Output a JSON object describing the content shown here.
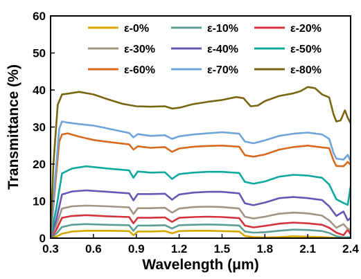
{
  "chart_data": {
    "type": "line",
    "title": "",
    "xlabel": "Wavelength (μm)",
    "ylabel": "Transmittance (%)",
    "xlim": [
      0.3,
      2.4
    ],
    "ylim": [
      0,
      60
    ],
    "xticks": [
      "0.3",
      "0.6",
      "0.9",
      "1.2",
      "1.5",
      "1.8",
      "2.1",
      "2.4"
    ],
    "yticks": [
      "0",
      "10",
      "20",
      "30",
      "40",
      "50",
      "60"
    ],
    "grid": false,
    "legend_position": "top-center",
    "series": [
      {
        "name": "ε-0%",
        "color": "#d4a800",
        "points": [
          [
            0.3,
            0.0
          ],
          [
            0.34,
            0.4
          ],
          [
            0.38,
            1.2
          ],
          [
            0.45,
            1.8
          ],
          [
            0.55,
            2.0
          ],
          [
            0.7,
            2.0
          ],
          [
            0.85,
            1.9
          ],
          [
            0.88,
            0.8
          ],
          [
            0.91,
            1.8
          ],
          [
            1.0,
            1.8
          ],
          [
            1.1,
            1.9
          ],
          [
            1.15,
            1.3
          ],
          [
            1.2,
            1.9
          ],
          [
            1.3,
            2.0
          ],
          [
            1.4,
            2.0
          ],
          [
            1.5,
            1.9
          ],
          [
            1.62,
            1.8
          ],
          [
            1.66,
            0.6
          ],
          [
            1.72,
            0.3
          ],
          [
            1.8,
            0.2
          ],
          [
            1.9,
            0.3
          ],
          [
            2.0,
            0.5
          ],
          [
            2.1,
            0.4
          ],
          [
            2.2,
            0.3
          ],
          [
            2.3,
            0.1
          ],
          [
            2.4,
            0.0
          ]
        ]
      },
      {
        "name": "ε-10%",
        "color": "#5a9e96",
        "points": [
          [
            0.3,
            0.0
          ],
          [
            0.34,
            1.2
          ],
          [
            0.38,
            3.0
          ],
          [
            0.45,
            3.6
          ],
          [
            0.55,
            3.8
          ],
          [
            0.7,
            3.6
          ],
          [
            0.85,
            3.5
          ],
          [
            0.88,
            2.0
          ],
          [
            0.91,
            3.4
          ],
          [
            1.0,
            3.4
          ],
          [
            1.1,
            3.5
          ],
          [
            1.15,
            2.6
          ],
          [
            1.2,
            3.5
          ],
          [
            1.3,
            3.6
          ],
          [
            1.4,
            3.7
          ],
          [
            1.5,
            3.6
          ],
          [
            1.62,
            3.4
          ],
          [
            1.66,
            1.8
          ],
          [
            1.72,
            1.5
          ],
          [
            1.8,
            1.6
          ],
          [
            1.9,
            2.0
          ],
          [
            2.0,
            2.3
          ],
          [
            2.1,
            2.2
          ],
          [
            2.2,
            1.9
          ],
          [
            2.25,
            1.4
          ],
          [
            2.3,
            0.5
          ],
          [
            2.35,
            0.2
          ],
          [
            2.4,
            0.3
          ]
        ]
      },
      {
        "name": "ε-20%",
        "color": "#d4333a",
        "points": [
          [
            0.3,
            0.0
          ],
          [
            0.34,
            2.2
          ],
          [
            0.38,
            5.5
          ],
          [
            0.45,
            6.0
          ],
          [
            0.55,
            6.2
          ],
          [
            0.7,
            5.9
          ],
          [
            0.85,
            5.7
          ],
          [
            0.88,
            4.0
          ],
          [
            0.91,
            5.5
          ],
          [
            1.0,
            5.5
          ],
          [
            1.1,
            5.6
          ],
          [
            1.15,
            4.4
          ],
          [
            1.2,
            5.5
          ],
          [
            1.3,
            5.7
          ],
          [
            1.4,
            5.8
          ],
          [
            1.5,
            5.7
          ],
          [
            1.62,
            5.4
          ],
          [
            1.66,
            3.4
          ],
          [
            1.72,
            2.9
          ],
          [
            1.8,
            3.3
          ],
          [
            1.9,
            3.9
          ],
          [
            2.0,
            4.2
          ],
          [
            2.1,
            4.0
          ],
          [
            2.2,
            3.6
          ],
          [
            2.25,
            2.8
          ],
          [
            2.3,
            1.5
          ],
          [
            2.35,
            0.8
          ],
          [
            2.38,
            2.3
          ],
          [
            2.4,
            1.0
          ]
        ]
      },
      {
        "name": "ε-30%",
        "color": "#a39483",
        "points": [
          [
            0.3,
            0.0
          ],
          [
            0.34,
            3.5
          ],
          [
            0.38,
            8.0
          ],
          [
            0.45,
            8.6
          ],
          [
            0.55,
            8.8
          ],
          [
            0.7,
            8.6
          ],
          [
            0.85,
            8.3
          ],
          [
            0.88,
            6.5
          ],
          [
            0.91,
            8.1
          ],
          [
            1.0,
            8.1
          ],
          [
            1.1,
            8.2
          ],
          [
            1.15,
            6.9
          ],
          [
            1.2,
            8.0
          ],
          [
            1.3,
            8.4
          ],
          [
            1.4,
            8.5
          ],
          [
            1.5,
            8.4
          ],
          [
            1.62,
            8.0
          ],
          [
            1.66,
            5.8
          ],
          [
            1.72,
            5.3
          ],
          [
            1.8,
            5.8
          ],
          [
            1.9,
            6.6
          ],
          [
            2.0,
            6.9
          ],
          [
            2.1,
            6.7
          ],
          [
            2.2,
            6.1
          ],
          [
            2.25,
            4.8
          ],
          [
            2.3,
            2.8
          ],
          [
            2.35,
            3.8
          ],
          [
            2.38,
            2.5
          ],
          [
            2.4,
            2.2
          ]
        ]
      },
      {
        "name": "ε-40%",
        "color": "#6a55b5",
        "points": [
          [
            0.3,
            0.0
          ],
          [
            0.34,
            5.0
          ],
          [
            0.38,
            11.8
          ],
          [
            0.45,
            12.6
          ],
          [
            0.55,
            12.9
          ],
          [
            0.7,
            12.5
          ],
          [
            0.85,
            12.1
          ],
          [
            0.88,
            10.2
          ],
          [
            0.91,
            11.9
          ],
          [
            1.0,
            11.9
          ],
          [
            1.1,
            12.0
          ],
          [
            1.15,
            10.4
          ],
          [
            1.2,
            11.8
          ],
          [
            1.3,
            12.3
          ],
          [
            1.4,
            12.5
          ],
          [
            1.5,
            12.5
          ],
          [
            1.62,
            12.1
          ],
          [
            1.66,
            9.4
          ],
          [
            1.72,
            8.9
          ],
          [
            1.8,
            9.6
          ],
          [
            1.9,
            10.8
          ],
          [
            2.0,
            11.1
          ],
          [
            2.1,
            10.8
          ],
          [
            2.2,
            10.3
          ],
          [
            2.25,
            8.6
          ],
          [
            2.3,
            6.0
          ],
          [
            2.35,
            7.2
          ],
          [
            2.38,
            4.8
          ],
          [
            2.4,
            5.5
          ]
        ]
      },
      {
        "name": "ε-50%",
        "color": "#0fa8a0",
        "points": [
          [
            0.3,
            0.0
          ],
          [
            0.34,
            8.0
          ],
          [
            0.38,
            17.5
          ],
          [
            0.45,
            18.8
          ],
          [
            0.55,
            19.4
          ],
          [
            0.7,
            18.8
          ],
          [
            0.85,
            18.3
          ],
          [
            0.88,
            16.3
          ],
          [
            0.91,
            18.0
          ],
          [
            1.0,
            17.7
          ],
          [
            1.1,
            17.8
          ],
          [
            1.15,
            16.0
          ],
          [
            1.2,
            17.3
          ],
          [
            1.3,
            17.7
          ],
          [
            1.4,
            17.9
          ],
          [
            1.5,
            17.9
          ],
          [
            1.62,
            17.6
          ],
          [
            1.66,
            15.2
          ],
          [
            1.72,
            14.7
          ],
          [
            1.8,
            15.3
          ],
          [
            1.9,
            16.6
          ],
          [
            2.0,
            17.1
          ],
          [
            2.1,
            16.9
          ],
          [
            2.2,
            16.3
          ],
          [
            2.25,
            14.5
          ],
          [
            2.3,
            10.5
          ],
          [
            2.35,
            9.5
          ],
          [
            2.38,
            9.0
          ],
          [
            2.4,
            14.0
          ]
        ]
      },
      {
        "name": "ε-60%",
        "color": "#d86a1e",
        "points": [
          [
            0.3,
            0.0
          ],
          [
            0.33,
            13.0
          ],
          [
            0.36,
            26.0
          ],
          [
            0.38,
            28.0
          ],
          [
            0.42,
            28.3
          ],
          [
            0.5,
            27.4
          ],
          [
            0.6,
            26.5
          ],
          [
            0.7,
            26.0
          ],
          [
            0.85,
            25.3
          ],
          [
            0.88,
            23.9
          ],
          [
            0.91,
            24.8
          ],
          [
            1.0,
            24.4
          ],
          [
            1.1,
            24.6
          ],
          [
            1.15,
            23.3
          ],
          [
            1.2,
            24.2
          ],
          [
            1.3,
            24.7
          ],
          [
            1.4,
            24.9
          ],
          [
            1.5,
            25.0
          ],
          [
            1.62,
            24.7
          ],
          [
            1.66,
            22.4
          ],
          [
            1.72,
            22.0
          ],
          [
            1.8,
            22.6
          ],
          [
            1.9,
            23.9
          ],
          [
            2.0,
            24.6
          ],
          [
            2.1,
            25.0
          ],
          [
            2.2,
            24.5
          ],
          [
            2.25,
            24.3
          ],
          [
            2.28,
            21.0
          ],
          [
            2.3,
            19.5
          ],
          [
            2.35,
            19.4
          ],
          [
            2.38,
            20.6
          ],
          [
            2.4,
            19.8
          ]
        ]
      },
      {
        "name": "ε-70%",
        "color": "#6ea4d8",
        "points": [
          [
            0.3,
            0.0
          ],
          [
            0.33,
            15.0
          ],
          [
            0.36,
            29.5
          ],
          [
            0.38,
            31.5
          ],
          [
            0.42,
            31.2
          ],
          [
            0.5,
            30.8
          ],
          [
            0.6,
            30.4
          ],
          [
            0.7,
            29.6
          ],
          [
            0.85,
            28.4
          ],
          [
            0.88,
            27.2
          ],
          [
            0.91,
            28.1
          ],
          [
            1.0,
            27.6
          ],
          [
            1.1,
            27.8
          ],
          [
            1.15,
            26.8
          ],
          [
            1.2,
            27.5
          ],
          [
            1.3,
            28.0
          ],
          [
            1.4,
            28.3
          ],
          [
            1.5,
            28.6
          ],
          [
            1.62,
            28.2
          ],
          [
            1.66,
            26.1
          ],
          [
            1.72,
            25.6
          ],
          [
            1.8,
            26.4
          ],
          [
            1.9,
            27.6
          ],
          [
            2.0,
            28.2
          ],
          [
            2.1,
            28.5
          ],
          [
            2.2,
            28.0
          ],
          [
            2.25,
            26.8
          ],
          [
            2.28,
            23.0
          ],
          [
            2.3,
            21.5
          ],
          [
            2.35,
            21.2
          ],
          [
            2.38,
            22.5
          ],
          [
            2.4,
            20.8
          ]
        ]
      },
      {
        "name": "ε-80%",
        "color": "#7a6510",
        "points": [
          [
            0.3,
            0.0
          ],
          [
            0.32,
            20.0
          ],
          [
            0.35,
            36.0
          ],
          [
            0.38,
            38.8
          ],
          [
            0.42,
            39.0
          ],
          [
            0.5,
            39.5
          ],
          [
            0.6,
            38.8
          ],
          [
            0.7,
            37.5
          ],
          [
            0.8,
            36.3
          ],
          [
            0.9,
            35.6
          ],
          [
            1.0,
            35.5
          ],
          [
            1.1,
            35.6
          ],
          [
            1.15,
            35.0
          ],
          [
            1.2,
            35.2
          ],
          [
            1.3,
            36.2
          ],
          [
            1.4,
            36.8
          ],
          [
            1.5,
            37.3
          ],
          [
            1.6,
            38.1
          ],
          [
            1.65,
            37.8
          ],
          [
            1.7,
            35.6
          ],
          [
            1.75,
            35.8
          ],
          [
            1.8,
            37.0
          ],
          [
            1.9,
            38.4
          ],
          [
            2.0,
            39.1
          ],
          [
            2.05,
            39.7
          ],
          [
            2.1,
            40.8
          ],
          [
            2.15,
            40.5
          ],
          [
            2.2,
            38.8
          ],
          [
            2.25,
            38.0
          ],
          [
            2.28,
            33.5
          ],
          [
            2.3,
            31.5
          ],
          [
            2.33,
            31.8
          ],
          [
            2.36,
            34.5
          ],
          [
            2.38,
            32.5
          ],
          [
            2.4,
            31.0
          ]
        ]
      }
    ]
  }
}
